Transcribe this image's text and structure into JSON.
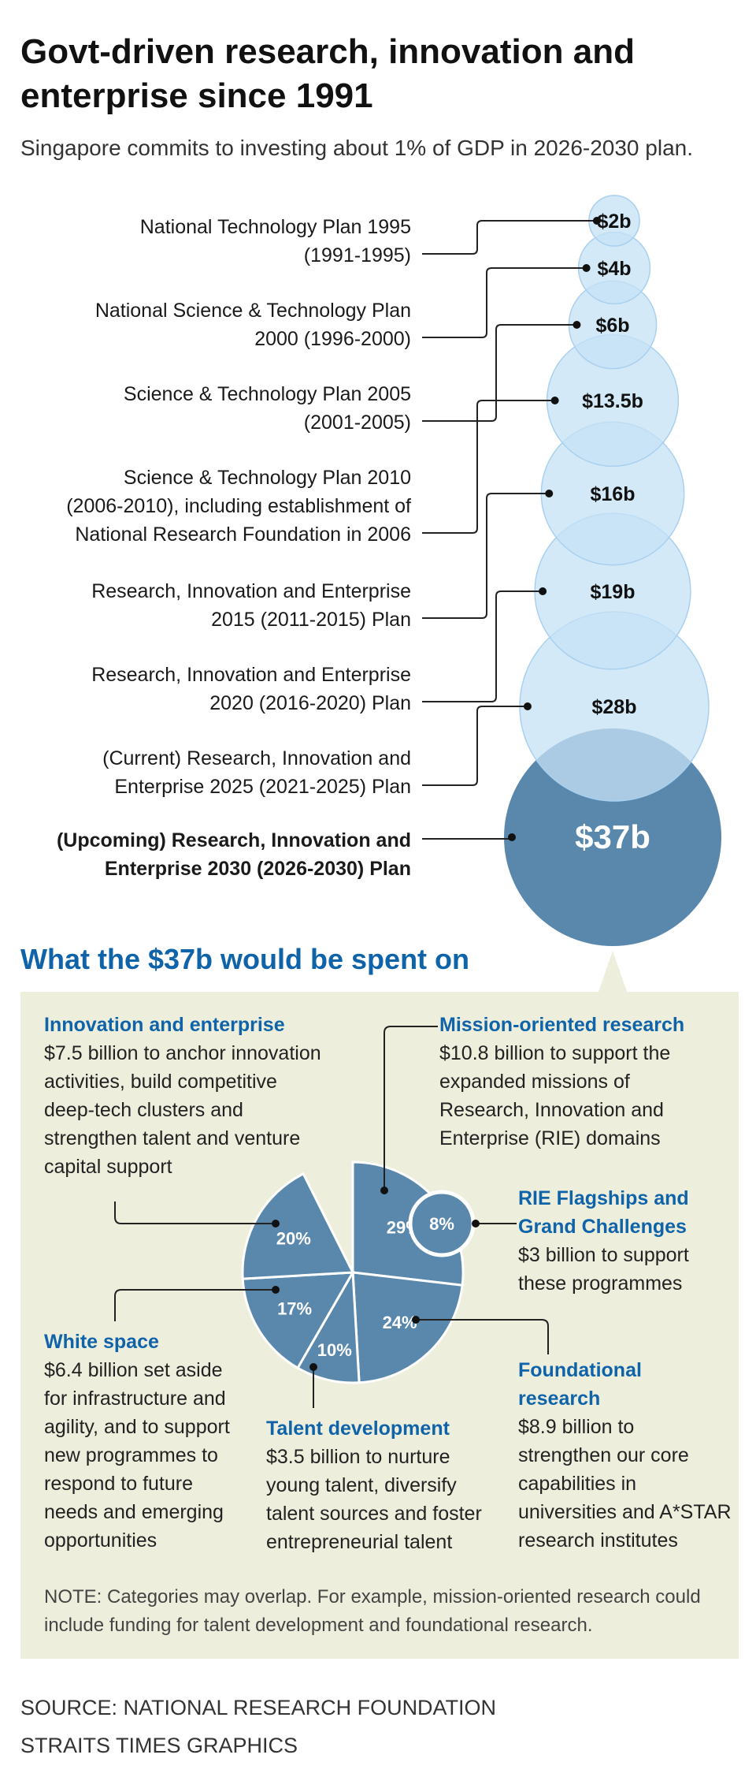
{
  "header": {
    "title": "Govt-driven research, innovation and enterprise since 1991",
    "subtitle": "Singapore commits to investing about 1% of GDP in 2026-2030 plan."
  },
  "chart_data": [
    {
      "type": "bubble",
      "title": "Govt-driven research, innovation and enterprise since 1991",
      "unit": "S$ billion",
      "plans": [
        {
          "label_lines": [
            "National Technology Plan 1995",
            "(1991-1995)"
          ],
          "value": 2,
          "value_label": "$2b",
          "status": "past"
        },
        {
          "label_lines": [
            "National Science & Technology Plan",
            "2000 (1996-2000)"
          ],
          "value": 4,
          "value_label": "$4b",
          "status": "past"
        },
        {
          "label_lines": [
            "Science & Technology Plan 2005",
            "(2001-2005)"
          ],
          "value": 6,
          "value_label": "$6b",
          "status": "past"
        },
        {
          "label_lines": [
            "Science & Technology Plan 2010",
            "(2006-2010), including establishment of",
            "National Research Foundation in 2006"
          ],
          "value": 13.5,
          "value_label": "$13.5b",
          "status": "past"
        },
        {
          "label_lines": [
            "Research, Innovation and Enterprise",
            "2015 (2011-2015) Plan"
          ],
          "value": 16,
          "value_label": "$16b",
          "status": "past"
        },
        {
          "label_lines": [
            "Research, Innovation and Enterprise",
            "2020 (2016-2020) Plan"
          ],
          "value": 19,
          "value_label": "$19b",
          "status": "past"
        },
        {
          "label_lines": [
            "(Current) Research, Innovation and",
            "Enterprise 2025 (2021-2025) Plan"
          ],
          "value": 28,
          "value_label": "$28b",
          "status": "current"
        },
        {
          "label_lines": [
            "(Upcoming) Research, Innovation and",
            "Enterprise 2030 (2026-2030) Plan"
          ],
          "value": 37,
          "value_label": "$37b",
          "status": "upcoming"
        }
      ]
    },
    {
      "type": "pie",
      "title": "What the $37b would be spent on",
      "slices": [
        {
          "name": "Mission-oriented research",
          "percent": 29,
          "label": "29%",
          "amount_billion": 10.8
        },
        {
          "name": "Foundational research",
          "percent": 24,
          "label": "24%",
          "amount_billion": 8.9
        },
        {
          "name": "Talent development",
          "percent": 10,
          "label": "10%",
          "amount_billion": 3.5
        },
        {
          "name": "White space",
          "percent": 17,
          "label": "17%",
          "amount_billion": 6.4
        },
        {
          "name": "Innovation and enterprise",
          "percent": 20,
          "label": "20%",
          "amount_billion": 7.5
        }
      ],
      "exploded_slice": {
        "name": "RIE Flagships and Grand Challenges",
        "percent": 8,
        "label": "8%",
        "amount_billion": 3
      }
    }
  ],
  "breakdown": {
    "section_title": "What the $37b would be spent on",
    "innovation": {
      "name": "Innovation and enterprise",
      "desc_lines": [
        "$7.5 billion to anchor innovation",
        "activities, build competitive",
        "deep-tech clusters and",
        "strengthen talent and venture",
        "capital support"
      ]
    },
    "mission": {
      "name": "Mission-oriented research",
      "desc_lines": [
        "$10.8 billion to support the",
        "expanded missions of",
        "Research, Innovation and",
        "Enterprise (RIE) domains"
      ]
    },
    "flagships": {
      "name_lines": [
        "RIE Flagships and",
        "Grand Challenges"
      ],
      "desc_lines": [
        "$3 billion to support",
        "these programmes"
      ]
    },
    "whitespace": {
      "name": "White space",
      "desc_lines": [
        "$6.4 billion set aside",
        "for infrastructure and",
        "agility, and to support",
        "new programmes to",
        "respond to future",
        "needs and emerging",
        "opportunities"
      ]
    },
    "talent": {
      "name": "Talent development",
      "desc_lines": [
        "$3.5 billion to nurture",
        "young talent, diversify",
        "talent sources and foster",
        "entrepreneurial talent"
      ]
    },
    "foundational": {
      "name_lines": [
        "Foundational",
        "research"
      ],
      "desc_lines": [
        "$8.9 billion to",
        "strengthen our core",
        "capabilities in",
        "universities and A*STAR",
        "research institutes"
      ]
    }
  },
  "note": "NOTE: Categories may overlap. For example, mission-oriented research could include funding for talent development and foundational research.",
  "source": {
    "line1": "SOURCE: NATIONAL RESEARCH FOUNDATION",
    "line2": "STRAITS TIMES GRAPHICS"
  },
  "colors": {
    "bubble_light": "#c6e1f6",
    "bubble_light_stroke": "#a9d0ef",
    "bubble_dark": "#5a88ad",
    "pie_fill": "#5a88ad",
    "heading_blue": "#0f63a8",
    "panel_bg": "#eeeedd"
  }
}
